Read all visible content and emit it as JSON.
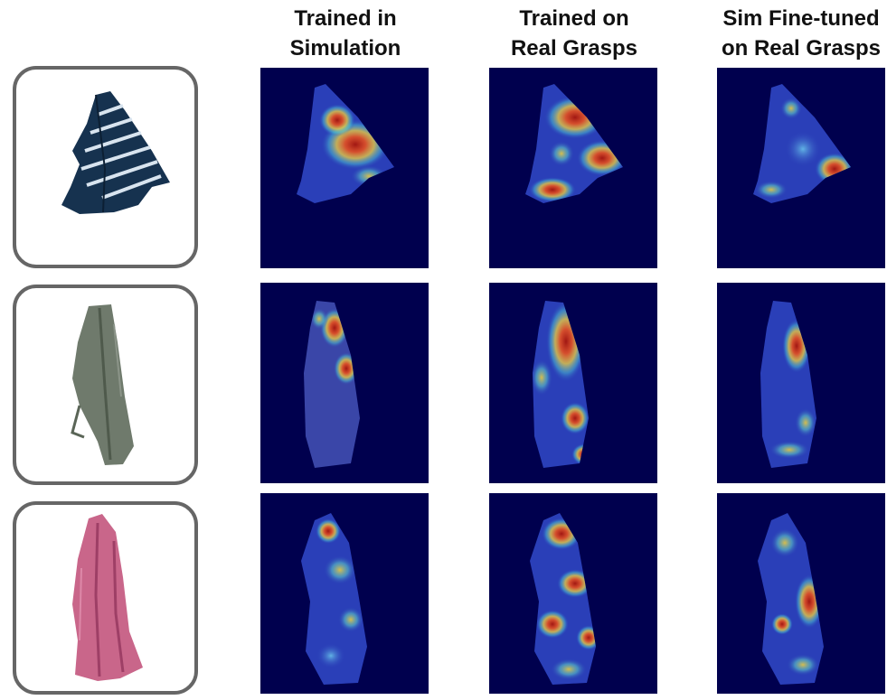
{
  "columns": [
    {
      "line1": "Trained in",
      "line2": "Simulation"
    },
    {
      "line1": "Trained on",
      "line2": "Real Grasps"
    },
    {
      "line1": "Sim Fine-tuned",
      "line2": "on Real Grasps"
    }
  ],
  "rows": [
    {
      "cloth": "navy-striped-towel",
      "cloth_color": "#16324f",
      "stripe_color": "#d8e4ef"
    },
    {
      "cloth": "gray-green-towel",
      "cloth_color": "#6f7a6c",
      "stripe_color": "#4f5a4c"
    },
    {
      "cloth": "pink-towel",
      "cloth_color": "#c9668a",
      "stripe_color": "#9e3f66"
    }
  ],
  "colors": {
    "heatmap_background": "#00004e",
    "cold": "#2a3fb8",
    "cool": "#4db3e6",
    "warm": "#f0d23c",
    "hot": "#b3200f",
    "frame_border": "#666666"
  }
}
